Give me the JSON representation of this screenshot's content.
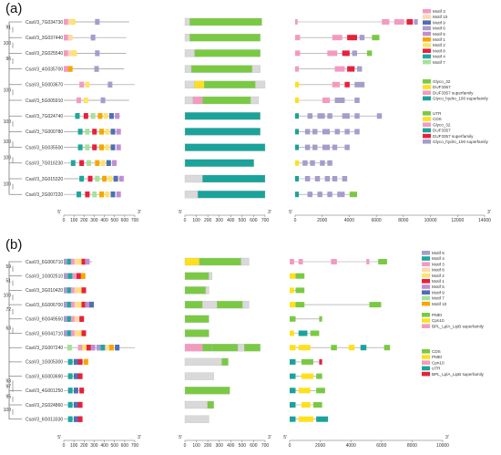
{
  "panel_a": {
    "label": "(a)",
    "genes": [
      "CsaV3_7G034730",
      "CsaV3_3G037440",
      "CsaV3_2G025540",
      "CsaV3_4G035700",
      "CsaV3_5G003670",
      "CsaV3_5G005910",
      "CsaV3_7G024740",
      "CsaV3_7G000780",
      "CsaV3_5G035500",
      "CsaV3_7G016230",
      "CsaV3_3G015320",
      "CsaV3_2G007220"
    ],
    "bootstrap": [
      {
        "v": "91",
        "row": 0.5
      },
      {
        "v": "96",
        "row": 2.5
      },
      {
        "v": "100",
        "row": 1.5
      },
      {
        "v": "100",
        "row": 4.5
      },
      {
        "v": "100",
        "row": 6.5
      },
      {
        "v": "100",
        "row": 7.8
      },
      {
        "v": "100",
        "row": 8.8
      },
      {
        "v": "100",
        "row": 10.5
      }
    ],
    "motif_axis": [
      "0",
      "100",
      "200",
      "300",
      "400",
      "500",
      "600",
      "700"
    ],
    "domain_axis": [
      "0",
      "100",
      "200",
      "300",
      "400",
      "500",
      "600",
      "700"
    ],
    "structure_axis": [
      "0",
      "2000",
      "4000",
      "6000",
      "8000",
      "10000",
      "12000",
      "14000"
    ],
    "motif_legend": [
      {
        "name": "Motif 3",
        "color": "#f49ac1"
      },
      {
        "name": "Motif 10",
        "color": "#ffd9a8"
      },
      {
        "name": "Motif 9",
        "color": "#4f6fb5"
      },
      {
        "name": "Motif 6",
        "color": "#a79ccc"
      },
      {
        "name": "Motif 5",
        "color": "#c08fd1"
      },
      {
        "name": "Motif 1",
        "color": "#f7a600"
      },
      {
        "name": "Motif 2",
        "color": "#ffe36b"
      },
      {
        "name": "Motif 8",
        "color": "#e8203c"
      },
      {
        "name": "Motif 4",
        "color": "#1ea7a0"
      },
      {
        "name": "Motif 7",
        "color": "#a6e29a"
      }
    ],
    "domain_legend": [
      {
        "name": "Glyco_32",
        "color": "#7ac943"
      },
      {
        "name": "DUF3357",
        "color": "#ffe01a"
      },
      {
        "name": "DUF3357 superfamily",
        "color": "#f49ac1"
      },
      {
        "name": "Glyco_hydro_100 superfamily",
        "color": "#1aa39a"
      }
    ],
    "structure_legend": [
      {
        "name": "UTR",
        "color": "#7ac943"
      },
      {
        "name": "CDS",
        "color": "#ffe01a"
      },
      {
        "name": "Glyco_32",
        "color": "#f49ac1"
      },
      {
        "name": "DUF3357",
        "color": "#1aa39a"
      },
      {
        "name": "DUF3357 superfamily",
        "color": "#e8203c"
      },
      {
        "name": "Glyco_hydro_100 superfamily",
        "color": "#a79ccc"
      }
    ]
  },
  "panel_b": {
    "label": "(b)",
    "genes": [
      "CsaV3_6G006710",
      "CsaV3_1G002510",
      "CsaV3_3G010420",
      "CsaV3_6G006700",
      "CsaV3_6G049550",
      "CsaV3_6G041710",
      "CsaV3_2G007240",
      "CsaV3_1G005300",
      "CsaV3_6G003690",
      "CsaV3_4G001250",
      "CsaV3_2G024860",
      "CsaV3_6G013330"
    ],
    "bootstrap": [
      {
        "v": "59",
        "row": 0.5
      },
      {
        "v": "51",
        "row": 1.5
      },
      {
        "v": "100",
        "row": 2.5
      },
      {
        "v": "72",
        "row": 3.5
      },
      {
        "v": "63",
        "row": 4.8
      },
      {
        "v": "93",
        "row": 8.5
      },
      {
        "v": "97",
        "row": 8.9
      },
      {
        "v": "95",
        "row": 9.6
      },
      {
        "v": "100",
        "row": 10.5
      }
    ],
    "motif_axis": [
      "0",
      "100",
      "200",
      "300",
      "400",
      "500",
      "600",
      "700"
    ],
    "domain_axis": [
      "0",
      "100",
      "200",
      "300",
      "400",
      "500",
      "600",
      "700"
    ],
    "structure_axis": [
      "0",
      "2000",
      "4000",
      "6000",
      "8000",
      "10000"
    ],
    "motif_legend": [
      {
        "name": "Motif 6",
        "color": "#a79ccc"
      },
      {
        "name": "Motif 4",
        "color": "#1ea7a0"
      },
      {
        "name": "Motif 3",
        "color": "#f49ac1"
      },
      {
        "name": "Motif 8",
        "color": "#ffd9a8"
      },
      {
        "name": "Motif 2",
        "color": "#ffe36b"
      },
      {
        "name": "Motif 1",
        "color": "#e8203c"
      },
      {
        "name": "Motif 5",
        "color": "#c08fd1"
      },
      {
        "name": "Motif 9",
        "color": "#4f6fb5"
      },
      {
        "name": "Motif 7",
        "color": "#a6e29a"
      },
      {
        "name": "Motif 10",
        "color": "#f7a600"
      }
    ],
    "domain_legend": [
      {
        "name": "PMEI",
        "color": "#7ac943"
      },
      {
        "name": "Cpn10",
        "color": "#ffe01a"
      },
      {
        "name": "BPL_LplA_LipB superfamily",
        "color": "#f49ac1"
      }
    ],
    "structure_legend": [
      {
        "name": "CDS",
        "color": "#7ac943"
      },
      {
        "name": "PMEI",
        "color": "#ffe01a"
      },
      {
        "name": "Cpn10",
        "color": "#f49ac1"
      },
      {
        "name": "UTR",
        "color": "#1aa39a"
      },
      {
        "name": "BPL_LplA_LipB superfamily",
        "color": "#e8203c"
      }
    ]
  },
  "end_5": "5'",
  "end_3": "3'"
}
